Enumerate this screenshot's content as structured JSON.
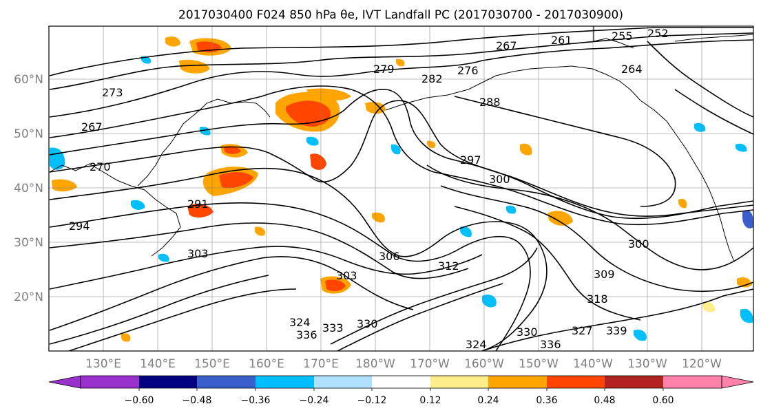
{
  "title": "2017030400 F024 850 hPa θe, IVT Landfall PC (2017030700 - 2017030900)",
  "map": {
    "lat_ticks": [
      "60°N",
      "50°N",
      "40°N",
      "30°N",
      "20°N"
    ],
    "lon_ticks": [
      "130°E",
      "140°E",
      "150°E",
      "160°E",
      "170°E",
      "180°W",
      "170°W",
      "160°W",
      "150°W",
      "140°W",
      "130°W",
      "120°W"
    ],
    "contour_labels": [
      "273",
      "267",
      "270",
      "261",
      "255",
      "252",
      "267",
      "264",
      "279",
      "282",
      "276",
      "288",
      "297",
      "300",
      "294",
      "291",
      "303",
      "306",
      "312",
      "303",
      "309",
      "300",
      "318",
      "324",
      "330",
      "336",
      "339",
      "327",
      "333",
      "330",
      "336",
      "324"
    ]
  },
  "colorbar": {
    "tick_labels": [
      "−0.60",
      "−0.48",
      "−0.36",
      "−0.24",
      "−0.12",
      "0.12",
      "0.24",
      "0.36",
      "0.48",
      "0.60"
    ],
    "colors": [
      "#9932cc",
      "#000080",
      "#3a5fcd",
      "#00bfff",
      "#b0e2ff",
      "#ffffff",
      "#ffec8b",
      "#ffa500",
      "#ff4500",
      "#b22222",
      "#ff82ab"
    ]
  },
  "colors": {
    "frame": "#000000",
    "grid": "#808080",
    "contour": "#000000"
  }
}
